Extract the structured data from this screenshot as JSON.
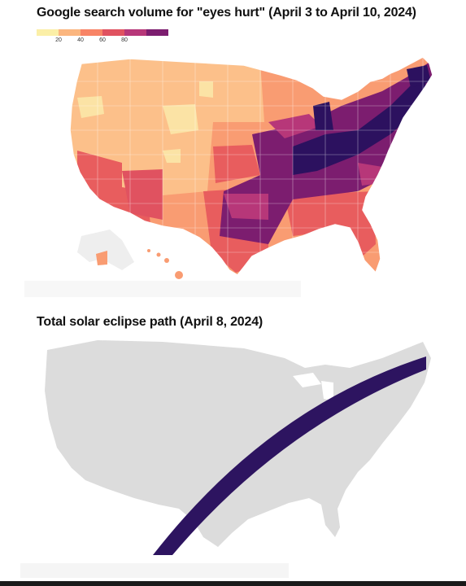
{
  "map1": {
    "title": "Google search volume for \"eyes hurt\" (April 3 to April 10, 2024)",
    "legend": {
      "ticks": [
        "20",
        "40",
        "60",
        "80"
      ],
      "colors": [
        "#fbefa7",
        "#fbb67f",
        "#f88466",
        "#e05260",
        "#b73779",
        "#7c1d6f",
        "#2c115f"
      ]
    },
    "colors": {
      "low": "#fbe3a5",
      "light_orange": "#fcc08a",
      "orange": "#f99c72",
      "coral": "#e85d5e",
      "magenta": "#b73779",
      "purple": "#7c1d6f",
      "dark": "#2c115f",
      "border": "#ffffff"
    }
  },
  "map2": {
    "title": "Total solar eclipse path (April 8, 2024)",
    "land_color": "#dcdcdc",
    "path_color": "#2d1460"
  }
}
